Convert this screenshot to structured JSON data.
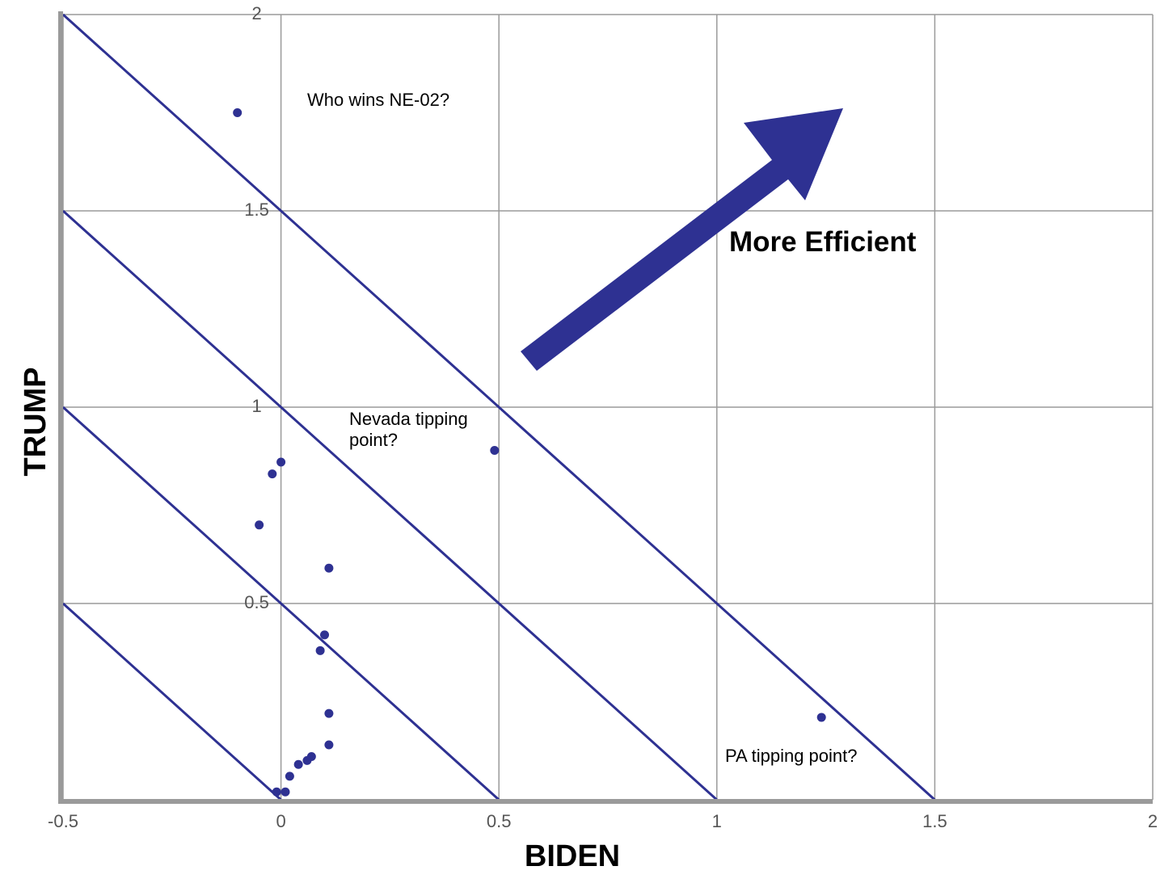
{
  "chart_data": {
    "type": "scatter",
    "x_label": "BIDEN",
    "y_label": "TRUMP",
    "xlim": [
      -0.5,
      2
    ],
    "ylim": [
      0,
      2
    ],
    "xticks": [
      -0.5,
      0,
      0.5,
      1,
      1.5,
      2
    ],
    "yticks": [
      0.5,
      1,
      1.5,
      2
    ],
    "grid": true,
    "color": "#2e3192",
    "x": [
      -0.1,
      0.49,
      1.24,
      0.0,
      -0.02,
      -0.05,
      0.11,
      0.1,
      0.09,
      0.11,
      0.11,
      0.07,
      0.06,
      0.04,
      0.02,
      0.01,
      -0.01
    ],
    "y": [
      1.75,
      0.89,
      0.21,
      0.86,
      0.83,
      0.7,
      0.59,
      0.42,
      0.38,
      0.22,
      0.14,
      0.11,
      0.1,
      0.09,
      0.06,
      0.02,
      0.02
    ],
    "reference_lines": [
      0,
      0.5,
      1,
      1.5
    ],
    "annotations": [
      "Who wins NE-02?",
      "Nevada tipping point?",
      "PA tipping point?",
      "More Efficient"
    ]
  }
}
